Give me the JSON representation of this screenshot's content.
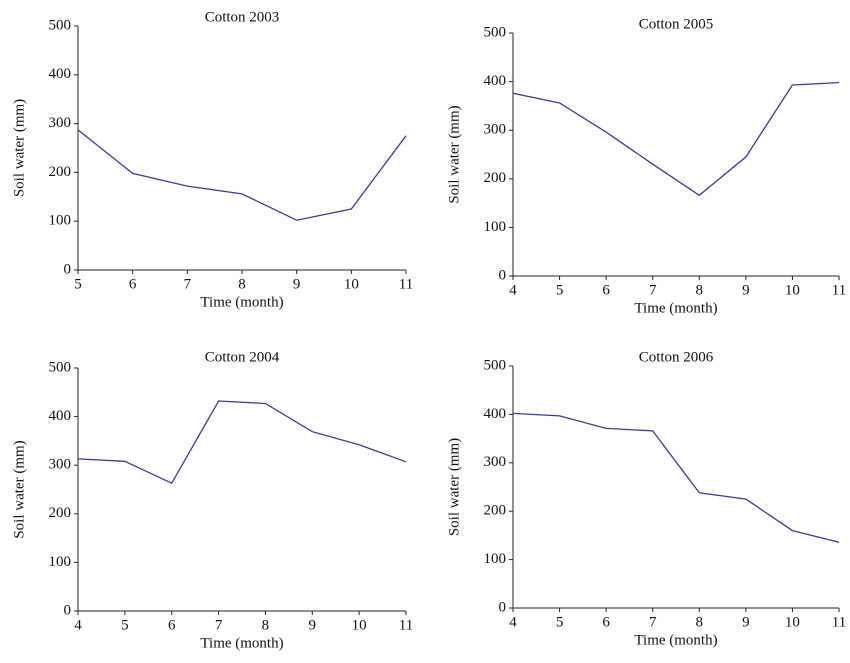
{
  "chart_data": [
    {
      "type": "line",
      "title": "Cotton 2003",
      "xlabel": "Time (month)",
      "ylabel": "Soil water (mm)",
      "x": [
        5,
        6,
        7,
        8,
        9,
        10,
        11
      ],
      "values": [
        287,
        198,
        172,
        156,
        102,
        125,
        275
      ],
      "color": "#3a3a9a",
      "xlim": [
        5,
        11
      ],
      "ylim": [
        0,
        500
      ],
      "xticks": [
        5,
        6,
        7,
        8,
        9,
        10,
        11
      ],
      "yticks": [
        0,
        100,
        200,
        300,
        400,
        500
      ]
    },
    {
      "type": "line",
      "title": "Cotton 2005",
      "xlabel": "Time (month)",
      "ylabel": "Soil water (mm)",
      "x": [
        4,
        5,
        6,
        7,
        8,
        9,
        10,
        11
      ],
      "values": [
        376,
        356,
        296,
        230,
        166,
        245,
        393,
        398
      ],
      "color": "#3a3a9a",
      "xlim": [
        4,
        11
      ],
      "ylim": [
        0,
        500
      ],
      "xticks": [
        4,
        5,
        6,
        7,
        8,
        9,
        10,
        11
      ],
      "yticks": [
        0,
        100,
        200,
        300,
        400,
        500
      ]
    },
    {
      "type": "line",
      "title": "Cotton 2004",
      "xlabel": "Time (month)",
      "ylabel": "Soil water (mm)",
      "x": [
        4,
        5,
        6,
        7,
        8,
        9,
        10,
        11
      ],
      "values": [
        313,
        308,
        263,
        432,
        427,
        369,
        342,
        307
      ],
      "color": "#3a3a9a",
      "xlim": [
        4,
        11
      ],
      "ylim": [
        0,
        500
      ],
      "xticks": [
        4,
        5,
        6,
        7,
        8,
        9,
        10,
        11
      ],
      "yticks": [
        0,
        100,
        200,
        300,
        400,
        500
      ]
    },
    {
      "type": "line",
      "title": "Cotton 2006",
      "xlabel": "Time (month)",
      "ylabel": "Soil water (mm)",
      "x": [
        4,
        5,
        6,
        7,
        8,
        9,
        10,
        11
      ],
      "values": [
        402,
        397,
        371,
        366,
        238,
        225,
        160,
        136
      ],
      "color": "#3a3a9a",
      "xlim": [
        4,
        11
      ],
      "ylim": [
        0,
        500
      ],
      "xticks": [
        4,
        5,
        6,
        7,
        8,
        9,
        10,
        11
      ],
      "yticks": [
        0,
        100,
        200,
        300,
        400,
        500
      ]
    }
  ]
}
